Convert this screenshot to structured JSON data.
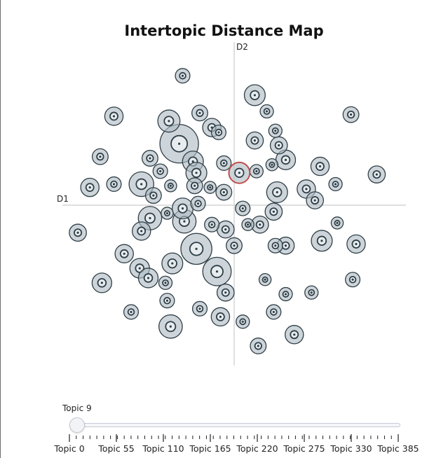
{
  "chart_data": {
    "type": "scatter",
    "title": "Intertopic Distance Map",
    "xlabel": "D1",
    "ylabel": "D2",
    "xlim": [
      -10,
      10
    ],
    "ylim": [
      -10,
      10
    ],
    "grid": false,
    "colors": {
      "marker_fill": "#b0bcc4",
      "marker_line": "#2f3f47",
      "selected_line": "#c0504d",
      "axis": "#cccccc"
    },
    "selected_topic": 9,
    "points": [
      {
        "x": -3.0,
        "y": 8.0,
        "s": 0.3
      },
      {
        "x": 1.2,
        "y": 6.8,
        "s": 0.55
      },
      {
        "x": -7.0,
        "y": 5.5,
        "s": 0.45
      },
      {
        "x": -3.8,
        "y": 5.2,
        "s": 0.6
      },
      {
        "x": -2.0,
        "y": 5.7,
        "s": 0.35
      },
      {
        "x": 1.9,
        "y": 5.8,
        "s": 0.25
      },
      {
        "x": 6.8,
        "y": 5.6,
        "s": 0.35
      },
      {
        "x": -1.3,
        "y": 4.8,
        "s": 0.45
      },
      {
        "x": -0.9,
        "y": 4.5,
        "s": 0.3
      },
      {
        "x": 2.4,
        "y": 4.6,
        "s": 0.25
      },
      {
        "x": 1.2,
        "y": 4.0,
        "s": 0.4
      },
      {
        "x": -3.2,
        "y": 3.8,
        "s": 1.25
      },
      {
        "x": 2.6,
        "y": 3.7,
        "s": 0.4
      },
      {
        "x": -7.8,
        "y": 3.0,
        "s": 0.35
      },
      {
        "x": -4.9,
        "y": 2.9,
        "s": 0.35
      },
      {
        "x": -2.4,
        "y": 2.7,
        "s": 0.55
      },
      {
        "x": -0.6,
        "y": 2.6,
        "s": 0.3
      },
      {
        "x": 2.2,
        "y": 2.5,
        "s": 0.2
      },
      {
        "x": 3.0,
        "y": 2.8,
        "s": 0.5
      },
      {
        "x": 5.0,
        "y": 2.4,
        "s": 0.45
      },
      {
        "x": -4.3,
        "y": 2.1,
        "s": 0.3
      },
      {
        "x": -2.2,
        "y": 2.0,
        "s": 0.55
      },
      {
        "x": 0.3,
        "y": 2.0,
        "s": 0.55
      },
      {
        "x": 1.3,
        "y": 2.1,
        "s": 0.25
      },
      {
        "x": 8.3,
        "y": 1.9,
        "s": 0.4
      },
      {
        "x": -8.4,
        "y": 1.1,
        "s": 0.45
      },
      {
        "x": -7.0,
        "y": 1.3,
        "s": 0.3
      },
      {
        "x": -5.4,
        "y": 1.3,
        "s": 0.7
      },
      {
        "x": -3.7,
        "y": 1.2,
        "s": 0.2
      },
      {
        "x": -2.3,
        "y": 1.2,
        "s": 0.35
      },
      {
        "x": -1.4,
        "y": 1.1,
        "s": 0.2
      },
      {
        "x": -0.6,
        "y": 0.8,
        "s": 0.35
      },
      {
        "x": 2.5,
        "y": 0.8,
        "s": 0.55
      },
      {
        "x": 4.2,
        "y": 1.0,
        "s": 0.45
      },
      {
        "x": 4.7,
        "y": 0.3,
        "s": 0.4
      },
      {
        "x": 5.9,
        "y": 1.3,
        "s": 0.25
      },
      {
        "x": -4.7,
        "y": 0.6,
        "s": 0.35
      },
      {
        "x": -2.1,
        "y": 0.1,
        "s": 0.3
      },
      {
        "x": -3.0,
        "y": -0.2,
        "s": 0.55
      },
      {
        "x": -4.9,
        "y": -0.8,
        "s": 0.65
      },
      {
        "x": -3.9,
        "y": -0.5,
        "s": 0.2
      },
      {
        "x": 0.5,
        "y": -0.2,
        "s": 0.3
      },
      {
        "x": 2.3,
        "y": -0.4,
        "s": 0.4
      },
      {
        "x": -2.9,
        "y": -1.0,
        "s": 0.65
      },
      {
        "x": -1.3,
        "y": -1.2,
        "s": 0.3
      },
      {
        "x": -0.5,
        "y": -1.5,
        "s": 0.4
      },
      {
        "x": 0.8,
        "y": -1.2,
        "s": 0.2
      },
      {
        "x": 1.5,
        "y": -1.2,
        "s": 0.4
      },
      {
        "x": 3.0,
        "y": -2.5,
        "s": 0.4
      },
      {
        "x": 6.0,
        "y": -1.1,
        "s": 0.2
      },
      {
        "x": -9.1,
        "y": -1.7,
        "s": 0.4
      },
      {
        "x": -5.4,
        "y": -1.6,
        "s": 0.45
      },
      {
        "x": -2.2,
        "y": -2.7,
        "s": 0.95
      },
      {
        "x": 0.0,
        "y": -2.5,
        "s": 0.35
      },
      {
        "x": 2.4,
        "y": -2.5,
        "s": 0.3
      },
      {
        "x": 5.1,
        "y": -2.2,
        "s": 0.55
      },
      {
        "x": 7.1,
        "y": -2.4,
        "s": 0.45
      },
      {
        "x": -6.4,
        "y": -3.0,
        "s": 0.45
      },
      {
        "x": -5.5,
        "y": -3.9,
        "s": 0.5
      },
      {
        "x": -3.6,
        "y": -3.6,
        "s": 0.55
      },
      {
        "x": -1.0,
        "y": -4.1,
        "s": 0.85
      },
      {
        "x": -5.0,
        "y": -4.5,
        "s": 0.5
      },
      {
        "x": -7.7,
        "y": -4.8,
        "s": 0.5
      },
      {
        "x": -4.0,
        "y": -4.8,
        "s": 0.25
      },
      {
        "x": 1.8,
        "y": -4.6,
        "s": 0.2
      },
      {
        "x": 6.9,
        "y": -4.6,
        "s": 0.3
      },
      {
        "x": -0.5,
        "y": -5.4,
        "s": 0.4
      },
      {
        "x": 3.0,
        "y": -5.5,
        "s": 0.25
      },
      {
        "x": 4.5,
        "y": -5.4,
        "s": 0.25
      },
      {
        "x": -3.9,
        "y": -5.9,
        "s": 0.3
      },
      {
        "x": -2.0,
        "y": -6.4,
        "s": 0.3
      },
      {
        "x": -6.0,
        "y": -6.6,
        "s": 0.3
      },
      {
        "x": 2.3,
        "y": -6.6,
        "s": 0.3
      },
      {
        "x": -0.8,
        "y": -6.9,
        "s": 0.45
      },
      {
        "x": 0.5,
        "y": -7.2,
        "s": 0.25
      },
      {
        "x": -3.7,
        "y": -7.5,
        "s": 0.65
      },
      {
        "x": 3.5,
        "y": -8.0,
        "s": 0.45
      },
      {
        "x": 1.4,
        "y": -8.7,
        "s": 0.35
      }
    ],
    "slider": {
      "label": "Topic 9",
      "value": 9,
      "min": 0,
      "max": 385,
      "ticks": [
        "Topic 0",
        "Topic 55",
        "Topic 110",
        "Topic 165",
        "Topic 220",
        "Topic 275",
        "Topic 330",
        "Topic 385"
      ]
    }
  }
}
